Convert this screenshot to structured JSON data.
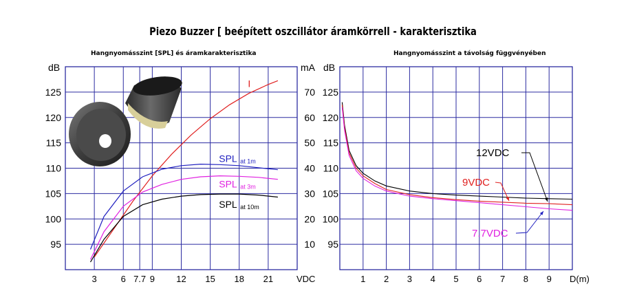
{
  "title": "Piezo Buzzer [ beépített oszcillátor áramkörrell - karakterisztika",
  "left_subtitle": "Hangnyomásszint [SPL] és áramkarakterisztika",
  "right_subtitle": "Hangnyomásszint a távolság függvényében",
  "chart_data": [
    {
      "type": "line",
      "title": "Hangnyomásszint [SPL] és áramkarakterisztika",
      "xlabel": "VDC",
      "ylabel": "dB",
      "y2label": "mA",
      "xlim": [
        0,
        24
      ],
      "ylim": [
        90,
        130
      ],
      "y2lim": [
        0,
        80
      ],
      "x_ticks": [
        "3",
        "6",
        "7.7",
        "9",
        "12",
        "15",
        "18",
        "21"
      ],
      "x_tick_values": [
        3,
        6,
        7.7,
        9,
        12,
        15,
        18,
        21
      ],
      "y_ticks": [
        95,
        100,
        105,
        110,
        115,
        120,
        125
      ],
      "y2_ticks": [
        10,
        20,
        30,
        40,
        50,
        60,
        70
      ],
      "grid": true,
      "series": [
        {
          "name": "I",
          "axis": "right",
          "color": "#e02020",
          "x": [
            3,
            5,
            7,
            9,
            11,
            13,
            15,
            17,
            19,
            21,
            22
          ],
          "y": [
            5,
            16,
            27,
            37,
            45.5,
            53,
            59.5,
            65,
            69.5,
            73,
            74.5
          ]
        },
        {
          "name": "SPL at 1m",
          "color": "#2020c0",
          "x": [
            2.6,
            4,
            6,
            8,
            10,
            12,
            14,
            16,
            18,
            20,
            22
          ],
          "y": [
            94,
            100.5,
            105.5,
            108.3,
            109.8,
            110.5,
            110.8,
            110.7,
            110.5,
            110.1,
            109.7
          ]
        },
        {
          "name": "SPL at 3m",
          "color": "#e020e0",
          "x": [
            2.6,
            4,
            6,
            8,
            10,
            12,
            14,
            16,
            18,
            20,
            22
          ],
          "y": [
            92,
            97.5,
            102.5,
            105.3,
            106.8,
            107.8,
            108.3,
            108.5,
            108.4,
            108.2,
            107.8
          ]
        },
        {
          "name": "SPL at 10m",
          "color": "#000000",
          "x": [
            2.6,
            4,
            6,
            8,
            10,
            12,
            14,
            16,
            18,
            20,
            22
          ],
          "y": [
            91.5,
            96,
            100.5,
            102.8,
            103.9,
            104.5,
            104.8,
            104.9,
            104.9,
            104.7,
            104.3
          ]
        }
      ],
      "labels": [
        {
          "text": "I",
          "suffix": "",
          "color": "#e02020",
          "x": 18.9,
          "y": 126
        },
        {
          "text": "SPL",
          "suffix": "at 1m",
          "color": "#2020c0",
          "x": 15.9,
          "y": 111.2
        },
        {
          "text": "SPL",
          "suffix": "at 3m",
          "color": "#e020e0",
          "x": 15.9,
          "y": 106.2
        },
        {
          "text": "SPL",
          "suffix": "at 10m",
          "color": "#000000",
          "x": 15.9,
          "y": 102.2
        }
      ]
    },
    {
      "type": "line",
      "title": "Hangnyomásszint a távolság függvényében",
      "xlabel": "D(m)",
      "ylabel": "dB",
      "xlim": [
        0,
        10
      ],
      "ylim": [
        90,
        130
      ],
      "x_ticks": [
        "1",
        "2",
        "3",
        "4",
        "5",
        "6",
        "7",
        "8",
        "9"
      ],
      "x_tick_values": [
        1,
        2,
        3,
        4,
        5,
        6,
        7,
        8,
        9
      ],
      "y_ticks": [
        95,
        100,
        105,
        110,
        115,
        120,
        125
      ],
      "grid": true,
      "series": [
        {
          "name": "12VDC",
          "color": "#000000",
          "x": [
            0.1,
            0.2,
            0.4,
            0.7,
            1,
            1.5,
            2,
            3,
            4,
            5,
            6,
            7,
            8,
            9,
            10
          ],
          "y": [
            123,
            118.5,
            113.5,
            110.5,
            109,
            107.5,
            106.5,
            105.5,
            105,
            104.7,
            104.5,
            104.3,
            104.1,
            104,
            103.9
          ]
        },
        {
          "name": "9VDC",
          "color": "#e02020",
          "x": [
            0.1,
            0.2,
            0.4,
            0.7,
            1,
            1.5,
            2,
            3,
            4,
            5,
            6,
            7,
            8,
            9,
            10
          ],
          "y": [
            122.5,
            118,
            113,
            110,
            108.5,
            107,
            105.8,
            104.8,
            104.2,
            103.8,
            103.5,
            103.3,
            103.1,
            103,
            102.8
          ]
        },
        {
          "name": "7.7VDC",
          "color": "#e020e0",
          "x": [
            0.1,
            0.2,
            0.4,
            0.7,
            1,
            1.5,
            2,
            3,
            4,
            5,
            6,
            7,
            8,
            9,
            10
          ],
          "y": [
            122,
            117.5,
            112.5,
            109.5,
            108,
            106.5,
            105.5,
            104.5,
            104,
            103.6,
            103.2,
            102.8,
            102.4,
            102,
            101.7
          ]
        }
      ],
      "labels": [
        {
          "text": "12VDC",
          "color": "#000000"
        },
        {
          "text": "9VDC",
          "color": "#e02020"
        },
        {
          "text": "7.7VDC",
          "color": "#e020e0"
        }
      ]
    }
  ]
}
